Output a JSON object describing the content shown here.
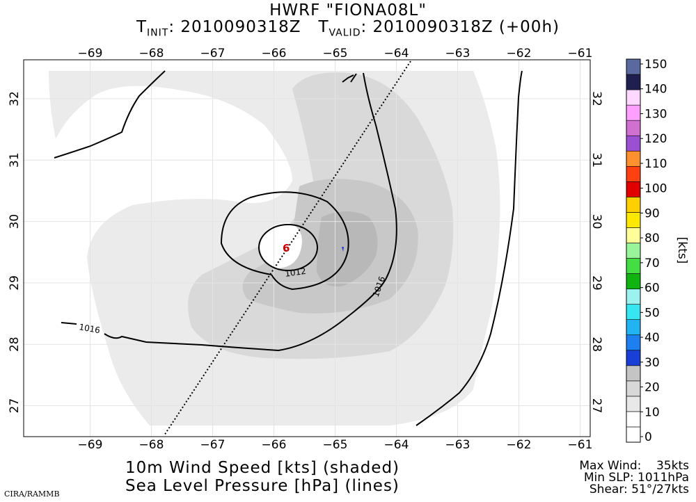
{
  "header": {
    "title_line1": "HWRF \"FIONA08L\"",
    "t_init_label": "T",
    "t_init_sub": "INIT",
    "t_init_value": ": 2010090318Z",
    "t_valid_label": "T",
    "t_valid_sub": "VALID",
    "t_valid_value": ": 2010090318Z (+00h)"
  },
  "map": {
    "lon_ticks": [
      "−69",
      "−68",
      "−67",
      "−66",
      "−65",
      "−64",
      "−63",
      "−62",
      "−61"
    ],
    "lat_ticks": [
      "27",
      "28",
      "29",
      "30",
      "31",
      "32"
    ],
    "isobar_labels": [
      "1012",
      "1016",
      "1016"
    ],
    "storm_symbol": "6",
    "colors": {
      "shade_light": "#ebebeb",
      "shade_mid": "#d8d8d8",
      "shade_dark": "#c6c6c6",
      "isobar": "#000000",
      "storm_marker": "#cc0000",
      "blue_spot": "#1f3fd0"
    }
  },
  "colorbar": {
    "unit_label": "[kts]",
    "levels": [
      "0",
      "10",
      "20",
      "30",
      "40",
      "50",
      "60",
      "70",
      "80",
      "90",
      "100",
      "110",
      "120",
      "130",
      "140",
      "150"
    ],
    "colors": [
      "#ffffff",
      "#ffffff",
      "#e8e8e8",
      "#d8d8d8",
      "#c4c4c4",
      "#1a3fd6",
      "#1e7ff0",
      "#22b4f2",
      "#36e6f0",
      "#9cf2ee",
      "#10b410",
      "#44dd44",
      "#9af59a",
      "#ffff99",
      "#ffe800",
      "#ffd000",
      "#e00000",
      "#ff4010",
      "#ff9030",
      "#9a50d0",
      "#d070d0",
      "#ffa0ff",
      "#ffd8ff",
      "#202050",
      "#5a6aa0"
    ]
  },
  "footer": {
    "line1": "10m Wind Speed [kts] (shaded)",
    "line2": "Sea Level Pressure [hPa] (lines)",
    "stats": "Max Wind:    35kts\nMin SLP: 1011hPa\nShear: 51°/27kts",
    "credit": "CIRA/RAMMB"
  }
}
